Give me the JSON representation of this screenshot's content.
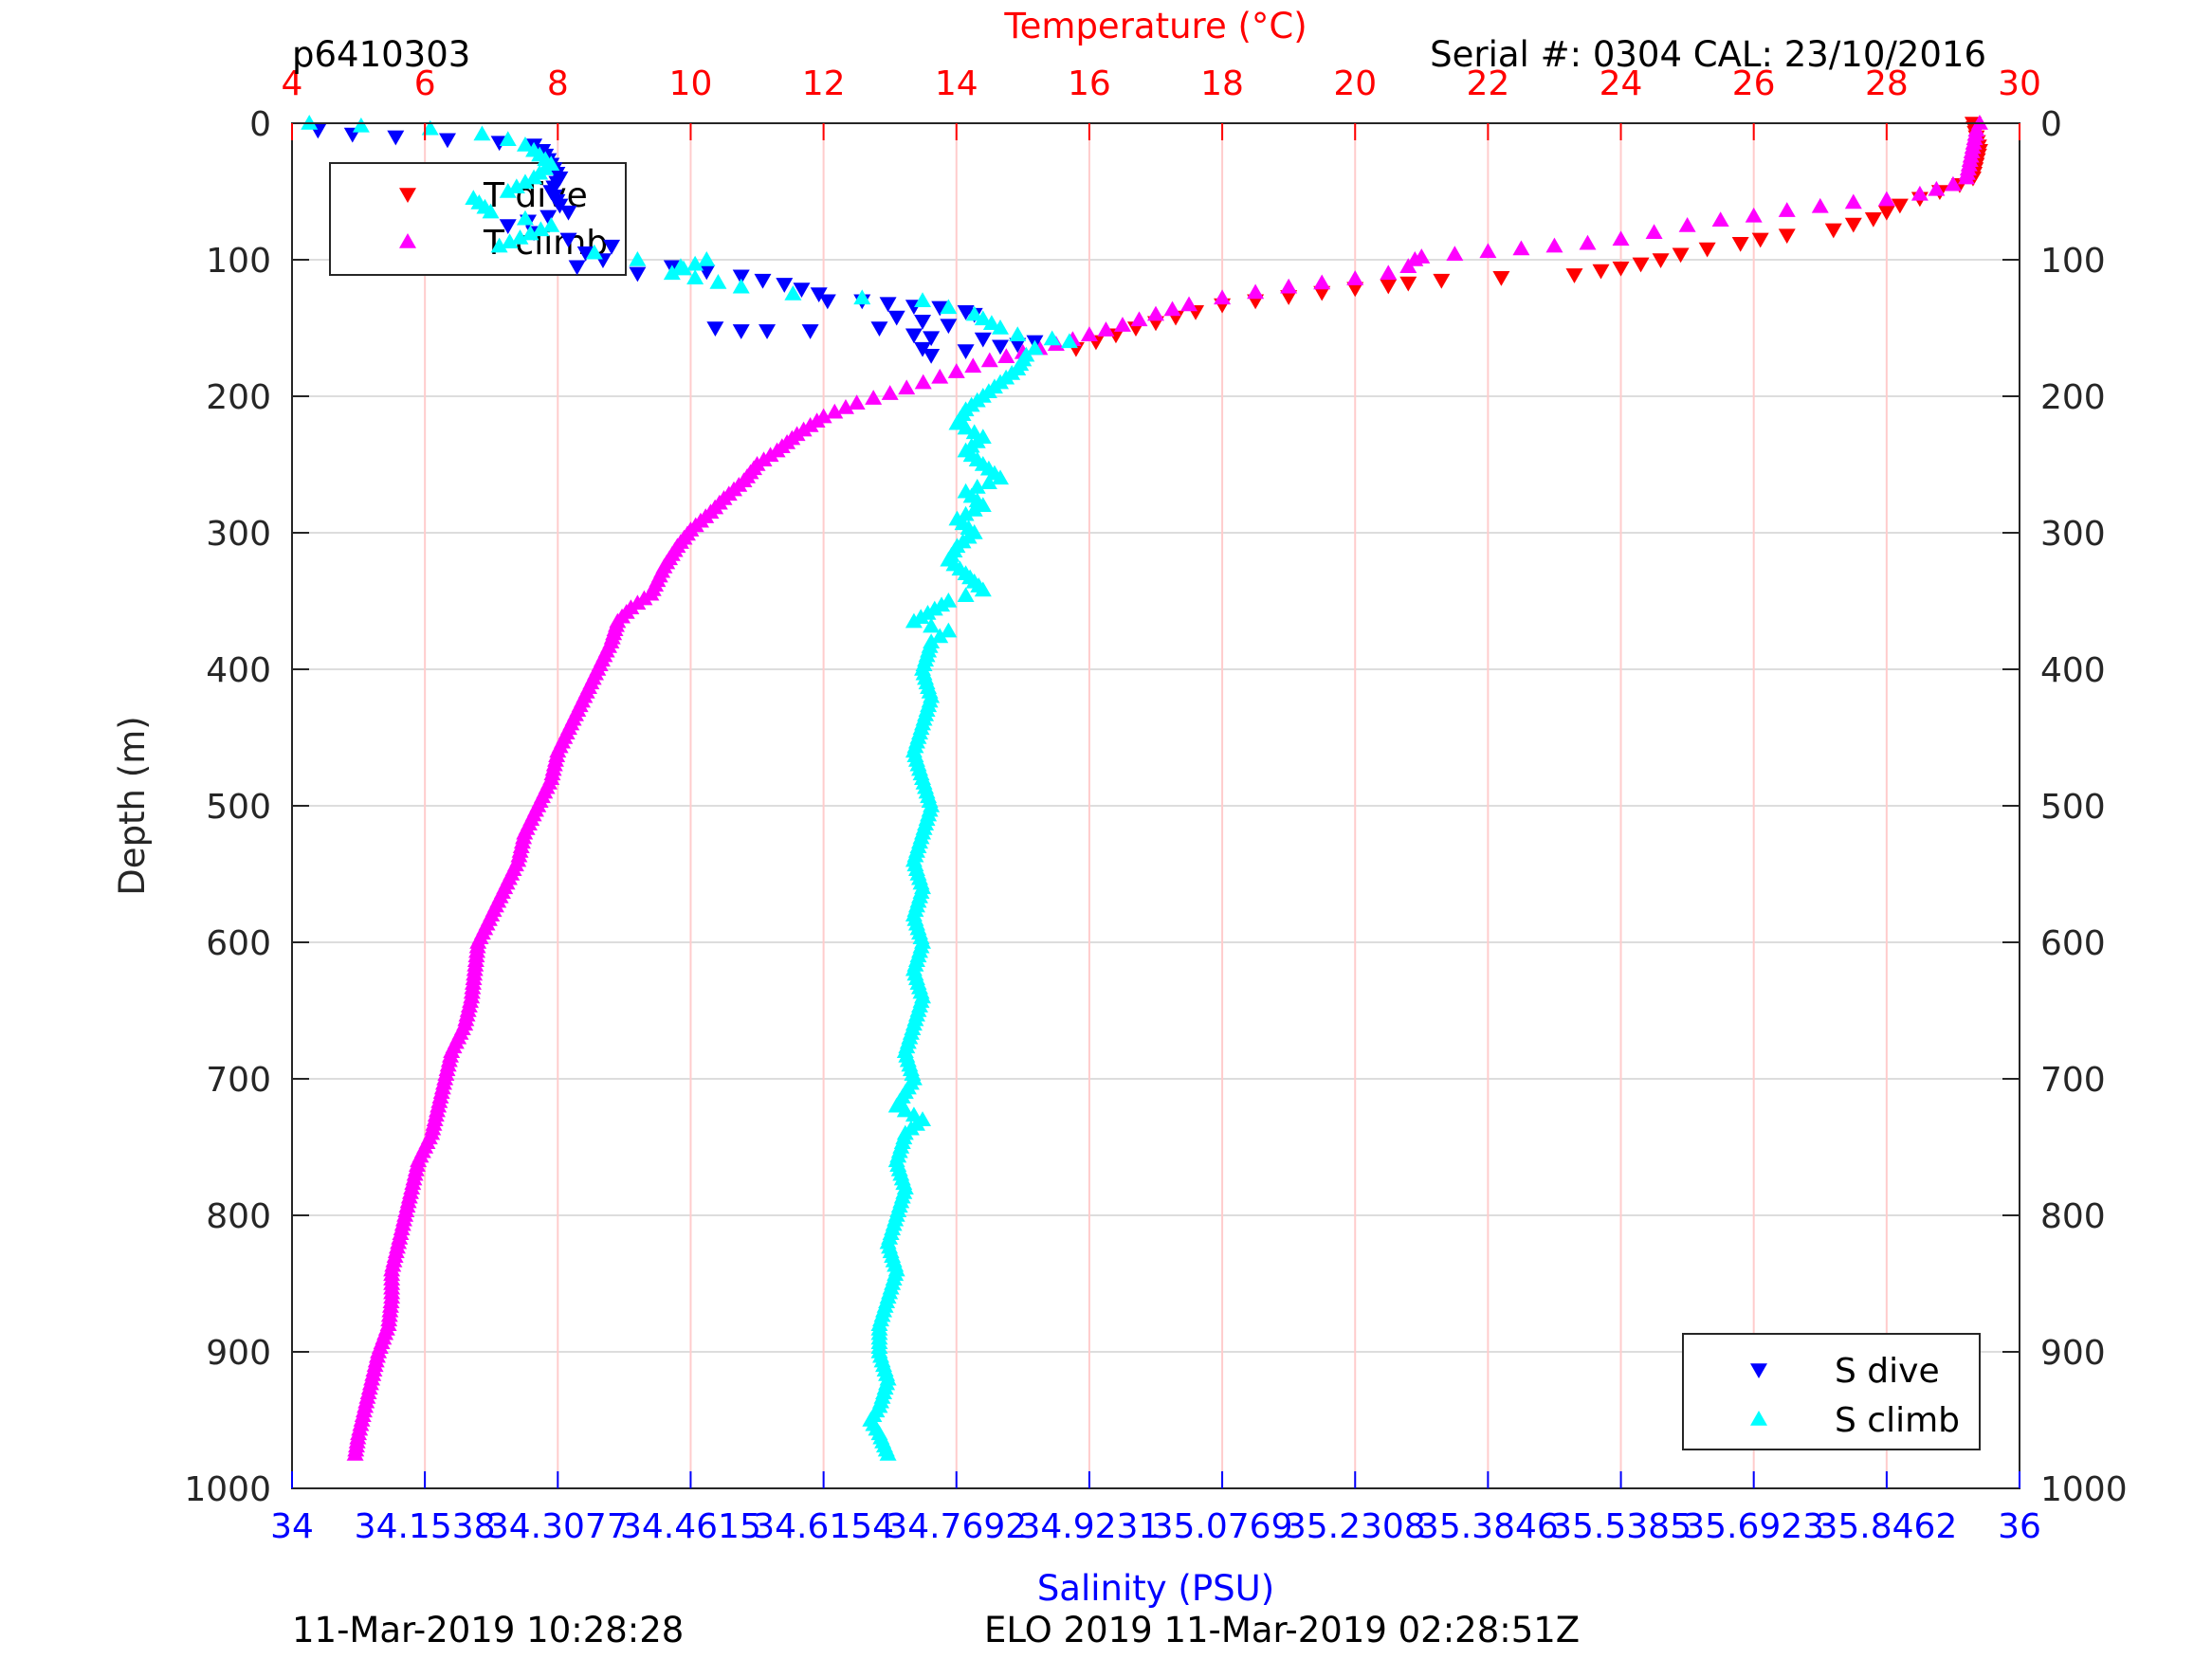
{
  "header": {
    "profile_id": "p6410303",
    "serial_cal": "Serial #: 0304  CAL: 23/10/2016"
  },
  "footer": {
    "left_timestamp": "11-Mar-2019 10:28:28",
    "right_timestamp": "ELO 2019 11-Mar-2019 02:28:51Z"
  },
  "colors": {
    "temperature_axis": "#ff0000",
    "salinity_axis": "#0000ff",
    "t_dive": "#ff0000",
    "t_climb": "#ff00ff",
    "s_dive": "#0000ff",
    "s_climb": "#00ffff",
    "grid_temperature": "#ffcccc",
    "grid_depth": "#dddddd"
  },
  "chart_data": {
    "type": "scatter",
    "title": "",
    "grid": true,
    "depth_axis": {
      "label": "Depth (m)",
      "range": [
        0,
        1000
      ],
      "reversed": true,
      "ticks": [
        "0",
        "100",
        "200",
        "300",
        "400",
        "500",
        "600",
        "700",
        "800",
        "900",
        "1000"
      ]
    },
    "temperature_axis": {
      "label": "Temperature (°C)",
      "position": "top",
      "range": [
        4,
        30
      ],
      "ticks": [
        "4",
        "6",
        "8",
        "10",
        "12",
        "14",
        "16",
        "18",
        "20",
        "22",
        "24",
        "26",
        "28",
        "30"
      ]
    },
    "salinity_axis": {
      "label": "Salinity (PSU)",
      "position": "bottom",
      "range": [
        34,
        36
      ],
      "ticks": [
        "34",
        "34.1538",
        "34.3077",
        "34.4615",
        "34.6154",
        "34.7692",
        "34.9231",
        "35.0769",
        "35.2308",
        "35.3846",
        "35.5385",
        "35.6923",
        "35.8462",
        "36"
      ]
    },
    "legend_top_left": {
      "placement": "top-left",
      "entries": [
        "T dive",
        "T climb"
      ]
    },
    "legend_bottom_right": {
      "placement": "bottom-right",
      "entries": [
        "S dive",
        "S climb"
      ]
    },
    "series": [
      {
        "name": "T dive",
        "axis": "temperature",
        "marker": "triangle-down",
        "points": [
          [
            29.3,
            0
          ],
          [
            29.35,
            10
          ],
          [
            29.4,
            20
          ],
          [
            29.35,
            30
          ],
          [
            29.3,
            40
          ],
          [
            29.1,
            45
          ],
          [
            28.8,
            50
          ],
          [
            28.5,
            55
          ],
          [
            28.2,
            60
          ],
          [
            28.0,
            65
          ],
          [
            27.8,
            70
          ],
          [
            27.2,
            78
          ],
          [
            26.5,
            82
          ],
          [
            26.1,
            85
          ],
          [
            25.8,
            88
          ],
          [
            25.3,
            92
          ],
          [
            24.9,
            96
          ],
          [
            24.6,
            100
          ],
          [
            24.3,
            103
          ],
          [
            24.0,
            106
          ],
          [
            23.7,
            108
          ],
          [
            23.3,
            111
          ],
          [
            22.2,
            113
          ],
          [
            21.3,
            115
          ],
          [
            20.8,
            117
          ],
          [
            20.5,
            119
          ],
          [
            20.0,
            121
          ],
          [
            19.5,
            124
          ],
          [
            19.0,
            127
          ],
          [
            18.5,
            130
          ],
          [
            18.0,
            133
          ],
          [
            17.6,
            138
          ],
          [
            17.3,
            142
          ],
          [
            17.0,
            146
          ],
          [
            16.7,
            150
          ],
          [
            16.4,
            155
          ],
          [
            16.1,
            160
          ],
          [
            15.8,
            165
          ]
        ]
      },
      {
        "name": "T climb",
        "axis": "temperature",
        "marker": "triangle-up",
        "points": [
          [
            29.4,
            0
          ],
          [
            29.35,
            5
          ],
          [
            29.2,
            40
          ],
          [
            29.0,
            45
          ],
          [
            28.5,
            52
          ],
          [
            28.0,
            56
          ],
          [
            27.5,
            58
          ],
          [
            27.0,
            61
          ],
          [
            26.5,
            64
          ],
          [
            26.0,
            68
          ],
          [
            25.5,
            71
          ],
          [
            25.0,
            75
          ],
          [
            24.5,
            80
          ],
          [
            24.0,
            85
          ],
          [
            23.5,
            88
          ],
          [
            23.0,
            90
          ],
          [
            22.5,
            92
          ],
          [
            22.0,
            94
          ],
          [
            21.5,
            96
          ],
          [
            21.0,
            98
          ],
          [
            20.9,
            100
          ],
          [
            20.8,
            105
          ],
          [
            20.5,
            110
          ],
          [
            20.0,
            114
          ],
          [
            19.5,
            117
          ],
          [
            19.0,
            120
          ],
          [
            18.5,
            124
          ],
          [
            18.0,
            128
          ],
          [
            17.5,
            133
          ],
          [
            17.0,
            140
          ],
          [
            16.5,
            148
          ],
          [
            16.0,
            155
          ],
          [
            15.5,
            162
          ],
          [
            15.0,
            168
          ],
          [
            14.5,
            174
          ],
          [
            14.0,
            182
          ],
          [
            13.5,
            190
          ],
          [
            13.0,
            198
          ],
          [
            12.5,
            205
          ],
          [
            12.0,
            215
          ],
          [
            11.6,
            228
          ],
          [
            11.3,
            240
          ],
          [
            11.0,
            250
          ],
          [
            10.8,
            262
          ],
          [
            10.5,
            275
          ],
          [
            10.3,
            285
          ],
          [
            10.0,
            298
          ],
          [
            9.8,
            310
          ],
          [
            9.6,
            325
          ],
          [
            9.4,
            345
          ],
          [
            9.1,
            355
          ],
          [
            8.9,
            365
          ],
          [
            8.8,
            380
          ],
          [
            8.6,
            400
          ],
          [
            8.4,
            420
          ],
          [
            8.2,
            440
          ],
          [
            8.0,
            460
          ],
          [
            7.9,
            480
          ],
          [
            7.7,
            500
          ],
          [
            7.5,
            520
          ],
          [
            7.4,
            540
          ],
          [
            7.2,
            560
          ],
          [
            7.0,
            580
          ],
          [
            6.8,
            600
          ],
          [
            6.75,
            620
          ],
          [
            6.7,
            640
          ],
          [
            6.6,
            660
          ],
          [
            6.4,
            680
          ],
          [
            6.3,
            700
          ],
          [
            6.2,
            720
          ],
          [
            6.1,
            740
          ],
          [
            5.9,
            760
          ],
          [
            5.8,
            780
          ],
          [
            5.7,
            800
          ],
          [
            5.6,
            820
          ],
          [
            5.5,
            840
          ],
          [
            5.5,
            860
          ],
          [
            5.45,
            880
          ],
          [
            5.3,
            900
          ],
          [
            5.2,
            920
          ],
          [
            5.1,
            940
          ],
          [
            5.0,
            960
          ],
          [
            4.95,
            975
          ]
        ]
      },
      {
        "name": "S dive",
        "axis": "salinity",
        "marker": "triangle-down",
        "points": [
          [
            34.03,
            5
          ],
          [
            34.07,
            8
          ],
          [
            34.12,
            10
          ],
          [
            34.18,
            12
          ],
          [
            34.24,
            14
          ],
          [
            34.28,
            16
          ],
          [
            34.29,
            20
          ],
          [
            34.3,
            30
          ],
          [
            34.31,
            40
          ],
          [
            34.3,
            50
          ],
          [
            34.31,
            60
          ],
          [
            34.32,
            65
          ],
          [
            34.25,
            75
          ],
          [
            34.28,
            80
          ],
          [
            34.32,
            85
          ],
          [
            34.37,
            90
          ],
          [
            34.34,
            95
          ],
          [
            34.36,
            100
          ],
          [
            34.33,
            105
          ],
          [
            34.4,
            110
          ],
          [
            34.44,
            105
          ],
          [
            34.52,
            112
          ],
          [
            34.57,
            118
          ],
          [
            34.61,
            125
          ],
          [
            34.62,
            130
          ],
          [
            34.66,
            130
          ],
          [
            34.69,
            132
          ],
          [
            34.72,
            134
          ],
          [
            34.75,
            135
          ],
          [
            34.78,
            138
          ],
          [
            34.79,
            140
          ],
          [
            34.7,
            142
          ],
          [
            34.73,
            145
          ],
          [
            34.76,
            148
          ],
          [
            34.68,
            150
          ],
          [
            34.49,
            150
          ],
          [
            34.52,
            152
          ],
          [
            34.55,
            152
          ],
          [
            34.6,
            152
          ],
          [
            34.72,
            155
          ],
          [
            34.74,
            157
          ],
          [
            34.8,
            158
          ],
          [
            34.84,
            162
          ],
          [
            34.73,
            165
          ],
          [
            34.74,
            170
          ],
          [
            34.86,
            160
          ]
        ]
      },
      {
        "name": "S climb",
        "axis": "salinity",
        "marker": "triangle-up",
        "points": [
          [
            34.02,
            0
          ],
          [
            34.08,
            2
          ],
          [
            34.16,
            4
          ],
          [
            34.22,
            8
          ],
          [
            34.25,
            12
          ],
          [
            34.27,
            16
          ],
          [
            34.28,
            20
          ],
          [
            34.3,
            30
          ],
          [
            34.28,
            40
          ],
          [
            34.25,
            50
          ],
          [
            34.21,
            55
          ],
          [
            34.23,
            65
          ],
          [
            34.27,
            70
          ],
          [
            34.3,
            75
          ],
          [
            34.24,
            90
          ],
          [
            34.35,
            95
          ],
          [
            34.4,
            100
          ],
          [
            34.45,
            105
          ],
          [
            34.48,
            100
          ],
          [
            34.44,
            110
          ],
          [
            34.52,
            120
          ],
          [
            34.58,
            125
          ],
          [
            34.66,
            128
          ],
          [
            34.73,
            130
          ],
          [
            34.76,
            135
          ],
          [
            34.79,
            140
          ],
          [
            34.82,
            150
          ],
          [
            34.84,
            155
          ],
          [
            34.88,
            158
          ],
          [
            34.9,
            160
          ],
          [
            34.86,
            165
          ],
          [
            34.85,
            170
          ],
          [
            34.84,
            180
          ],
          [
            34.82,
            190
          ],
          [
            34.8,
            200
          ],
          [
            34.78,
            210
          ],
          [
            34.77,
            220
          ],
          [
            34.8,
            230
          ],
          [
            34.78,
            240
          ],
          [
            34.8,
            250
          ],
          [
            34.82,
            260
          ],
          [
            34.78,
            270
          ],
          [
            34.8,
            280
          ],
          [
            34.77,
            290
          ],
          [
            34.79,
            300
          ],
          [
            34.77,
            310
          ],
          [
            34.76,
            320
          ],
          [
            34.78,
            330
          ],
          [
            34.8,
            342
          ],
          [
            34.76,
            350
          ],
          [
            34.72,
            365
          ],
          [
            34.76,
            372
          ],
          [
            34.74,
            380
          ],
          [
            34.73,
            400
          ],
          [
            34.74,
            420
          ],
          [
            34.73,
            440
          ],
          [
            34.72,
            460
          ],
          [
            34.73,
            480
          ],
          [
            34.74,
            500
          ],
          [
            34.73,
            520
          ],
          [
            34.72,
            540
          ],
          [
            34.73,
            560
          ],
          [
            34.72,
            580
          ],
          [
            34.73,
            600
          ],
          [
            34.72,
            620
          ],
          [
            34.73,
            640
          ],
          [
            34.72,
            660
          ],
          [
            34.71,
            680
          ],
          [
            34.72,
            700
          ],
          [
            34.7,
            720
          ],
          [
            34.73,
            730
          ],
          [
            34.71,
            740
          ],
          [
            34.7,
            760
          ],
          [
            34.71,
            780
          ],
          [
            34.7,
            800
          ],
          [
            34.69,
            820
          ],
          [
            34.7,
            840
          ],
          [
            34.69,
            860
          ],
          [
            34.68,
            880
          ],
          [
            34.68,
            900
          ],
          [
            34.69,
            920
          ],
          [
            34.68,
            940
          ],
          [
            34.67,
            950
          ],
          [
            34.68,
            960
          ],
          [
            34.69,
            975
          ]
        ]
      }
    ]
  }
}
